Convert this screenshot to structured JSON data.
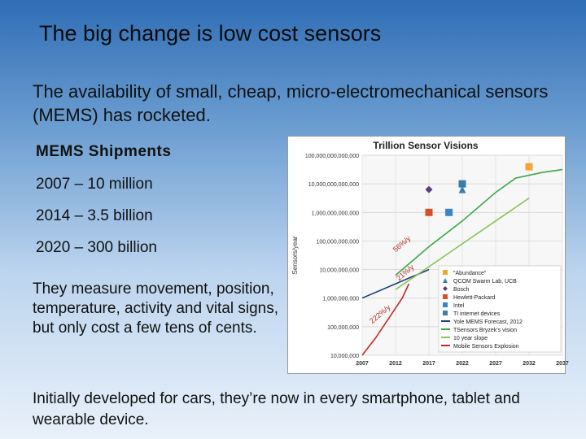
{
  "slide": {
    "title": "The big change is low cost sensors",
    "intro": "The availability of small, cheap, micro-electromechanical sensors (MEMS) has rocketed.",
    "mems_heading": "MEMS Shipments",
    "shipments": [
      "2007 – 10 million",
      "2014 – 3.5 billion",
      "2020 – 300 billion"
    ],
    "measure_text": "They measure movement, position, temperature, activity and vital signs, but only cost a few tens of cents.",
    "footer": "Initially developed for cars, they’re now in every smartphone, tablet and wearable device."
  },
  "colors": {
    "bg_top": "#2f6db5",
    "bg_bottom": "#e9f1fa",
    "chart_bg": "#ffffff",
    "plot_bg": "#f7f7f7",
    "grid": "#cfcfcf",
    "abundance": "#f4a533",
    "qcom": "#3b7fb6",
    "bosch": "#5a3e86",
    "hp": "#d94f2a",
    "intel": "#3a83c9",
    "ti": "#3a7ea7",
    "yole": "#1f3e78",
    "tsensors": "#3aa64a",
    "ten_year": "#88c35a",
    "mobile": "#c62828"
  },
  "chart_data": {
    "type": "scatter",
    "title": "Trillion Sensor Visions",
    "ylabel": "Sensors/year",
    "xlabel": "",
    "x_ticks": [
      "2007",
      "2012",
      "2017",
      "2022",
      "2027",
      "2032",
      "2037"
    ],
    "y_ticks": [
      "10,000,000",
      "100,000,000",
      "1,000,000,000",
      "10,000,000,000",
      "100,000,000,000",
      "1,000,000,000,000",
      "10,000,000,000,000",
      "100,000,000,000,000"
    ],
    "xlim": [
      2007,
      2037
    ],
    "ylim_log10": [
      7,
      14
    ],
    "grid": true,
    "legend_position": "bottom-right",
    "annotations": [
      {
        "text": "56%/y",
        "x": 2012,
        "y_log10": 10.6
      },
      {
        "text": "21%/y",
        "x": 2012.5,
        "y_log10": 9.6
      },
      {
        "text": "222%/y",
        "x": 2008.5,
        "y_log10": 8.1
      }
    ],
    "series": [
      {
        "name": "\"Abundance\"",
        "kind": "marker",
        "marker": "square",
        "color": "#f4a533",
        "points": [
          [
            2032,
            13.6
          ]
        ]
      },
      {
        "name": "QCOM Swarm Lab, UCB",
        "kind": "marker",
        "marker": "triangle",
        "color": "#3b7fb6",
        "points": [
          [
            2022,
            12.8
          ]
        ]
      },
      {
        "name": "Bosch",
        "kind": "marker",
        "marker": "diamond",
        "color": "#5a3e86",
        "points": [
          [
            2017,
            12.8
          ]
        ]
      },
      {
        "name": "Hewlett-Packard",
        "kind": "marker",
        "marker": "square",
        "color": "#d94f2a",
        "points": [
          [
            2017,
            12.0
          ]
        ]
      },
      {
        "name": "Intel",
        "kind": "marker",
        "marker": "square",
        "color": "#3a83c9",
        "points": [
          [
            2020,
            12.0
          ]
        ]
      },
      {
        "name": "TI internet devices",
        "kind": "marker",
        "marker": "square",
        "color": "#3a7ea7",
        "points": [
          [
            2022,
            13.0
          ]
        ]
      },
      {
        "name": "Yole MEMS Forecast, 2012",
        "kind": "line",
        "color": "#1f3e78",
        "points": [
          [
            2007,
            9.0
          ],
          [
            2012,
            9.5
          ],
          [
            2017,
            10.0
          ]
        ]
      },
      {
        "name": "TSensors Bryzek's vision",
        "kind": "line",
        "color": "#3aa64a",
        "points": [
          [
            2012,
            9.8
          ],
          [
            2017,
            10.8
          ],
          [
            2022,
            11.7
          ],
          [
            2027,
            12.7
          ],
          [
            2030,
            13.2
          ],
          [
            2034,
            13.4
          ],
          [
            2037,
            13.5
          ]
        ]
      },
      {
        "name": "10 year slope",
        "kind": "line",
        "color": "#88c35a",
        "points": [
          [
            2012,
            9.3
          ],
          [
            2017,
            10.1
          ],
          [
            2022,
            10.9
          ],
          [
            2027,
            11.7
          ],
          [
            2032,
            12.5
          ]
        ]
      },
      {
        "name": "Mobile Sensors Explosion",
        "kind": "line",
        "color": "#c62828",
        "points": [
          [
            2007,
            7.0
          ],
          [
            2009,
            7.6
          ],
          [
            2011,
            8.3
          ],
          [
            2013,
            9.0
          ],
          [
            2014,
            9.5
          ]
        ]
      }
    ]
  }
}
